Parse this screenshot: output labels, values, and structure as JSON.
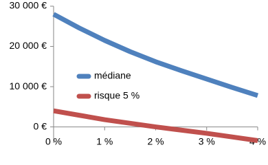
{
  "chart_data": {
    "type": "line",
    "x": [
      0,
      0.5,
      1,
      1.5,
      2,
      2.5,
      3,
      3.5,
      4
    ],
    "series": [
      {
        "name": "médiane",
        "color": "#4f81bd",
        "values": [
          28000,
          24600,
          21500,
          18700,
          16200,
          14000,
          11900,
          9800,
          7800
        ]
      },
      {
        "name": "risque 5 %",
        "color": "#c0504d",
        "values": [
          4000,
          2900,
          1800,
          900,
          0,
          -800,
          -1600,
          -2500,
          -3400
        ]
      }
    ],
    "xlim": [
      0,
      4
    ],
    "xticks": [
      {
        "value": 0,
        "label": "0 %"
      },
      {
        "value": 1,
        "label": "1 %"
      },
      {
        "value": 2,
        "label": "2 %"
      },
      {
        "value": 3,
        "label": "3 %"
      },
      {
        "value": 4,
        "label": "4 %"
      }
    ],
    "ylim": [
      -4000,
      30000
    ],
    "yticks": [
      {
        "value": 0,
        "label": "0 €"
      },
      {
        "value": 10000,
        "label": "10 000 €"
      },
      {
        "value": 20000,
        "label": "20 000 €"
      },
      {
        "value": 30000,
        "label": "30 000 €"
      }
    ],
    "grid": false,
    "legend": "center-left"
  }
}
